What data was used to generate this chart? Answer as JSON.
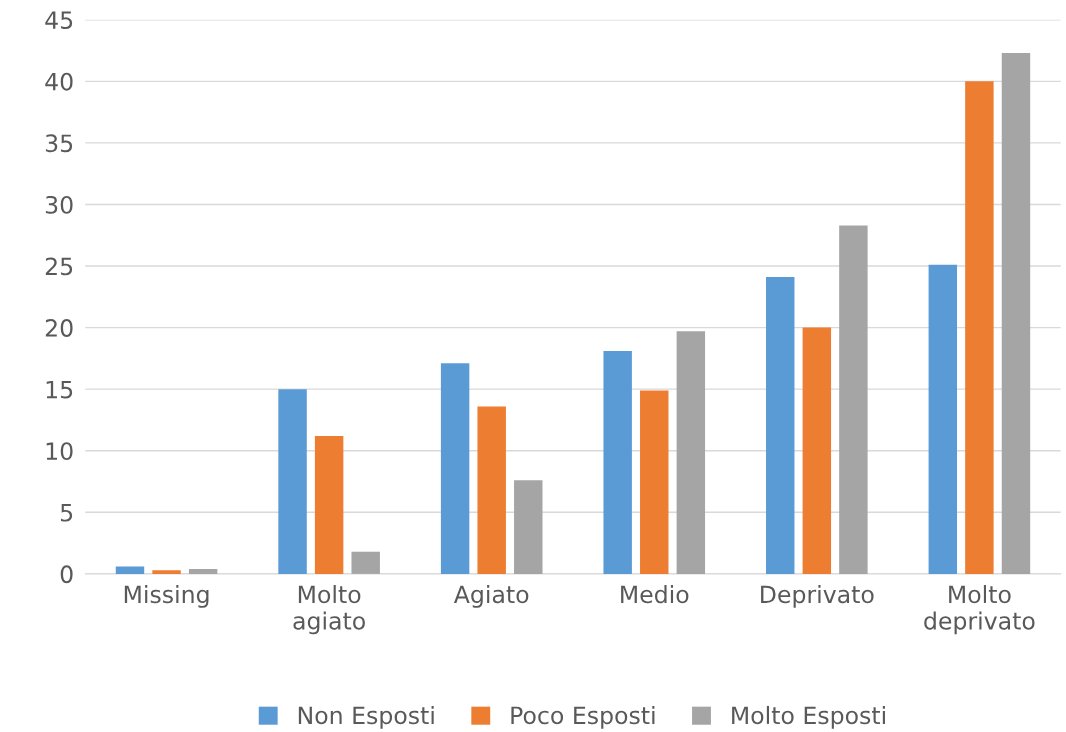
{
  "chart_data": {
    "type": "bar",
    "categories": [
      "Missing",
      "Molto\nagiato",
      "Agiato",
      "Medio",
      "Deprivato",
      "Molto\ndeprivato"
    ],
    "series": [
      {
        "name": "Non Esposti",
        "color": "#5b9bd5",
        "values": [
          0.6,
          15.0,
          17.1,
          18.1,
          24.1,
          25.1
        ]
      },
      {
        "name": "Poco Esposti",
        "color": "#ed7d31",
        "values": [
          0.3,
          11.2,
          13.6,
          14.9,
          20.0,
          40.0
        ]
      },
      {
        "name": "Molto Esposti",
        "color": "#a5a5a5",
        "values": [
          0.4,
          1.8,
          7.6,
          19.7,
          28.3,
          42.3
        ]
      }
    ],
    "ylim": [
      0,
      45
    ],
    "yticks": [
      0,
      5,
      10,
      15,
      20,
      25,
      30,
      35,
      40,
      45
    ],
    "grid": "y",
    "legend": "bottom"
  }
}
